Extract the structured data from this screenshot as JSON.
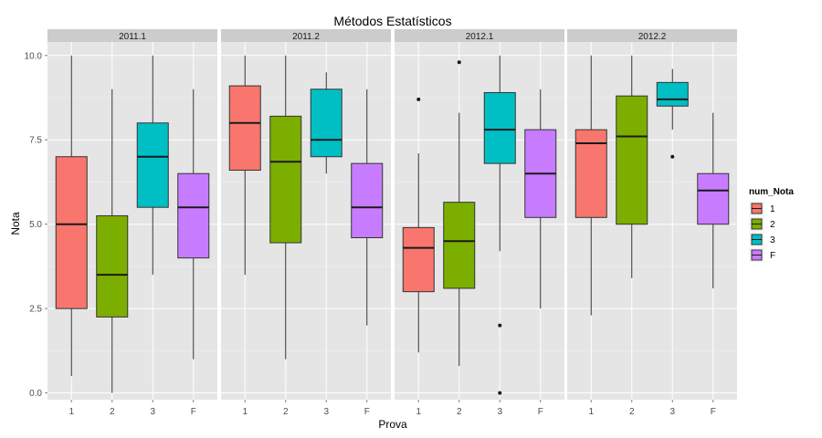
{
  "chart_data": {
    "type": "boxplot",
    "title": "Métodos Estatísticos",
    "xlabel": "Prova",
    "ylabel": "Nota",
    "ylim": [
      -0.2,
      10.4
    ],
    "y_ticks": [
      "0.0",
      "2.5",
      "5.0",
      "7.5",
      "10.0"
    ],
    "y_tick_values": [
      0,
      2.5,
      5,
      7.5,
      10
    ],
    "categories": [
      "1",
      "2",
      "3",
      "F"
    ],
    "legend": {
      "title": "num_Nota",
      "position": "right",
      "entries": [
        "1",
        "2",
        "3",
        "F"
      ]
    },
    "colors": {
      "1": "#f8766d",
      "2": "#7cae00",
      "3": "#00bfc4",
      "F": "#c77cff",
      "panel_bg": "#e5e5e5",
      "grid": "#ffffff",
      "strip_bg": "#cccccc"
    },
    "grid": true,
    "panels": [
      {
        "label": "2011.1",
        "boxes": [
          {
            "category": "1",
            "min": 0.5,
            "q1": 2.5,
            "median": 5.0,
            "q3": 7.0,
            "max": 10.0,
            "outliers": []
          },
          {
            "category": "2",
            "min": 0.0,
            "q1": 2.25,
            "median": 3.5,
            "q3": 5.25,
            "max": 9.0,
            "outliers": []
          },
          {
            "category": "3",
            "min": 3.5,
            "q1": 5.5,
            "median": 7.0,
            "q3": 8.0,
            "max": 10.0,
            "outliers": []
          },
          {
            "category": "F",
            "min": 1.0,
            "q1": 4.0,
            "median": 5.5,
            "q3": 6.5,
            "max": 9.0,
            "outliers": []
          }
        ]
      },
      {
        "label": "2011.2",
        "boxes": [
          {
            "category": "1",
            "min": 3.5,
            "q1": 6.6,
            "median": 8.0,
            "q3": 9.1,
            "max": 10.0,
            "outliers": []
          },
          {
            "category": "2",
            "min": 1.0,
            "q1": 4.45,
            "median": 6.85,
            "q3": 8.2,
            "max": 10.0,
            "outliers": []
          },
          {
            "category": "3",
            "min": 6.5,
            "q1": 7.0,
            "median": 7.5,
            "q3": 9.0,
            "max": 9.5,
            "outliers": []
          },
          {
            "category": "F",
            "min": 2.0,
            "q1": 4.6,
            "median": 5.5,
            "q3": 6.8,
            "max": 9.0,
            "outliers": []
          }
        ]
      },
      {
        "label": "2012.1",
        "boxes": [
          {
            "category": "1",
            "min": 1.2,
            "q1": 3.0,
            "median": 4.3,
            "q3": 4.9,
            "max": 7.1,
            "outliers": [
              8.7
            ]
          },
          {
            "category": "2",
            "min": 0.8,
            "q1": 3.1,
            "median": 4.5,
            "q3": 5.65,
            "max": 8.3,
            "outliers": [
              9.8
            ]
          },
          {
            "category": "3",
            "min": 4.2,
            "q1": 6.8,
            "median": 7.8,
            "q3": 8.9,
            "max": 10.0,
            "outliers": [
              2.0,
              0.0
            ]
          },
          {
            "category": "F",
            "min": 2.5,
            "q1": 5.2,
            "median": 6.5,
            "q3": 7.8,
            "max": 9.0,
            "outliers": []
          }
        ]
      },
      {
        "label": "2012.2",
        "boxes": [
          {
            "category": "1",
            "min": 2.3,
            "q1": 5.2,
            "median": 7.4,
            "q3": 7.8,
            "max": 10.0,
            "outliers": []
          },
          {
            "category": "2",
            "min": 3.4,
            "q1": 5.0,
            "median": 7.6,
            "q3": 8.8,
            "max": 10.0,
            "outliers": []
          },
          {
            "category": "3",
            "min": 7.8,
            "q1": 8.5,
            "median": 8.7,
            "q3": 9.2,
            "max": 9.6,
            "outliers": [
              7.0
            ]
          },
          {
            "category": "F",
            "min": 3.1,
            "q1": 5.0,
            "median": 6.0,
            "q3": 6.5,
            "max": 8.3,
            "outliers": []
          }
        ]
      }
    ]
  }
}
